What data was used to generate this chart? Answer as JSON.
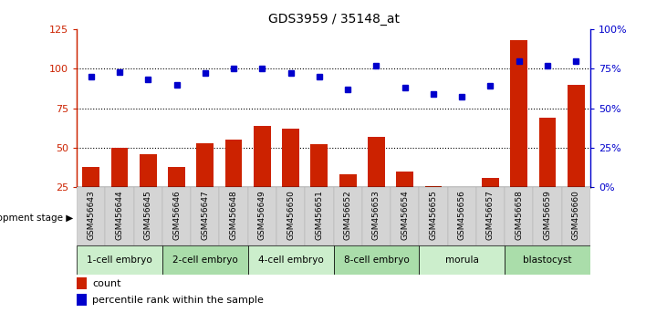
{
  "title": "GDS3959 / 35148_at",
  "samples": [
    "GSM456643",
    "GSM456644",
    "GSM456645",
    "GSM456646",
    "GSM456647",
    "GSM456648",
    "GSM456649",
    "GSM456650",
    "GSM456651",
    "GSM456652",
    "GSM456653",
    "GSM456654",
    "GSM456655",
    "GSM456656",
    "GSM456657",
    "GSM456658",
    "GSM456659",
    "GSM456660"
  ],
  "counts": [
    38,
    50,
    46,
    38,
    53,
    55,
    64,
    62,
    52,
    33,
    57,
    35,
    26,
    24,
    31,
    118,
    69,
    90
  ],
  "percentiles": [
    70,
    73,
    68,
    65,
    72,
    75,
    75,
    72,
    70,
    62,
    77,
    63,
    59,
    57,
    64,
    80,
    77,
    80
  ],
  "stages": [
    {
      "label": "1-cell embryo",
      "start": 0,
      "end": 3
    },
    {
      "label": "2-cell embryo",
      "start": 3,
      "end": 6
    },
    {
      "label": "4-cell embryo",
      "start": 6,
      "end": 9
    },
    {
      "label": "8-cell embryo",
      "start": 9,
      "end": 12
    },
    {
      "label": "morula",
      "start": 12,
      "end": 15
    },
    {
      "label": "blastocyst",
      "start": 15,
      "end": 18
    }
  ],
  "stage_colors": [
    "#cceecc",
    "#aaddaa",
    "#cceecc",
    "#aaddaa",
    "#cceecc",
    "#aaddaa"
  ],
  "bar_color": "#cc2200",
  "dot_color": "#0000cc",
  "left_ylim": [
    25,
    125
  ],
  "left_yticks": [
    25,
    50,
    75,
    100,
    125
  ],
  "right_ylim": [
    0,
    100
  ],
  "right_yticks": [
    0,
    25,
    50,
    75,
    100
  ],
  "right_yticklabels": [
    "0%",
    "25%",
    "50%",
    "75%",
    "100%"
  ],
  "hgrid_values": [
    50,
    75,
    100
  ],
  "legend_count_label": "count",
  "legend_pct_label": "percentile rank within the sample",
  "development_stage_label": "development stage"
}
